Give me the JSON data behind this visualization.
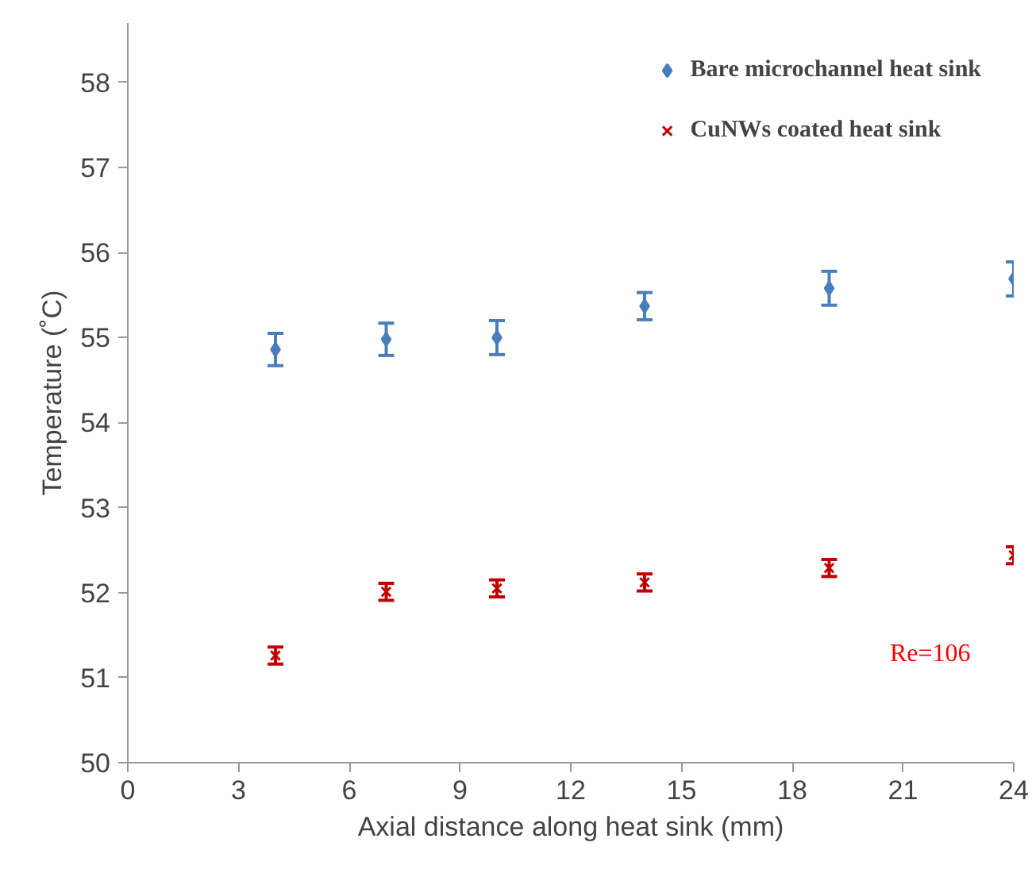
{
  "chart_data": {
    "type": "scatter",
    "xlabel": "Axial distance along heat sink (mm)",
    "ylabel": "Temperature (˚C)",
    "x": [
      4,
      7,
      10,
      14,
      19,
      24
    ],
    "series": [
      {
        "name": "Bare microchannel heat sink",
        "color": "#4a7ebb",
        "marker": "diamond",
        "values": [
          54.86,
          54.98,
          55.0,
          55.37,
          55.58,
          55.69
        ],
        "errors": [
          0.19,
          0.19,
          0.2,
          0.16,
          0.2,
          0.2
        ]
      },
      {
        "name": "CuNWs coated heat sink",
        "color": "#c00000",
        "marker": "cross",
        "values": [
          51.26,
          52.01,
          52.05,
          52.12,
          52.29,
          52.44
        ],
        "errors": [
          0.1,
          0.1,
          0.1,
          0.1,
          0.1,
          0.1
        ]
      }
    ],
    "annotations": [
      "Re=106"
    ],
    "xlim": [
      0,
      24
    ],
    "ylim": [
      50,
      58.7
    ],
    "xticks": [
      0,
      3,
      6,
      9,
      12,
      15,
      18,
      21,
      24
    ],
    "yticks": [
      50,
      51,
      52,
      53,
      54,
      55,
      56,
      57,
      58
    ],
    "grid": false,
    "legend": "top right"
  }
}
